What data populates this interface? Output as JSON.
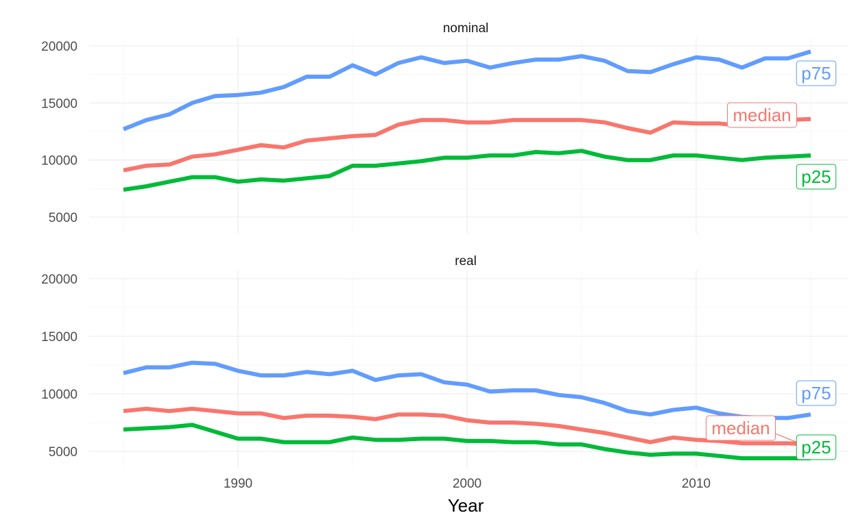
{
  "chart_data": {
    "type": "line",
    "xlabel": "Year",
    "ylabel": "",
    "xlim": [
      1985,
      2015
    ],
    "ylim": [
      3800,
      20500
    ],
    "x_ticks": [
      1990,
      2000,
      2010
    ],
    "x_tick_labels": [
      "1990",
      "2000",
      "2010"
    ],
    "y_ticks": [
      5000,
      10000,
      15000,
      20000
    ],
    "y_tick_labels": [
      "5000",
      "10000",
      "15000",
      "20000"
    ],
    "grid": true,
    "legend": "none",
    "colors": {
      "p75": "#619cff",
      "median": "#f8766d",
      "p25": "#00ba38"
    },
    "x": [
      1985,
      1986,
      1987,
      1988,
      1989,
      1990,
      1991,
      1992,
      1993,
      1994,
      1995,
      1996,
      1997,
      1998,
      1999,
      2000,
      2001,
      2002,
      2003,
      2004,
      2005,
      2006,
      2007,
      2008,
      2009,
      2010,
      2011,
      2012,
      2013,
      2014,
      2015
    ],
    "facets": [
      {
        "title": "nominal",
        "series": [
          {
            "name": "p75",
            "values": [
              12700,
              13500,
              14000,
              15000,
              15600,
              15700,
              15900,
              16400,
              17300,
              17300,
              18300,
              17500,
              18500,
              19000,
              18500,
              18700,
              18100,
              18500,
              18800,
              18800,
              19100,
              18700,
              17800,
              17700,
              18400,
              19000,
              18800,
              18100,
              18900,
              18900,
              19500
            ]
          },
          {
            "name": "median",
            "values": [
              9100,
              9500,
              9600,
              10300,
              10500,
              10900,
              11300,
              11100,
              11700,
              11900,
              12100,
              12200,
              13100,
              13500,
              13500,
              13300,
              13300,
              13500,
              13500,
              13500,
              13500,
              13300,
              12800,
              12400,
              13300,
              13200,
              13200,
              13000,
              13300,
              13500,
              13600
            ]
          },
          {
            "name": "p25",
            "values": [
              7400,
              7700,
              8100,
              8500,
              8500,
              8100,
              8300,
              8200,
              8400,
              8600,
              9500,
              9500,
              9700,
              9900,
              10200,
              10200,
              10400,
              10400,
              10700,
              10600,
              10800,
              10300,
              10000,
              10000,
              10400,
              10400,
              10200,
              10000,
              10200,
              10300,
              10400
            ]
          }
        ],
        "labels": [
          {
            "series": "p75",
            "text": "p75"
          },
          {
            "series": "median",
            "text": "median"
          },
          {
            "series": "p25",
            "text": "p25"
          }
        ]
      },
      {
        "title": "real",
        "series": [
          {
            "name": "p75",
            "values": [
              11800,
              12300,
              12300,
              12700,
              12600,
              12000,
              11600,
              11600,
              11900,
              11700,
              12000,
              11200,
              11600,
              11700,
              11000,
              10800,
              10200,
              10300,
              10300,
              9900,
              9700,
              9200,
              8500,
              8200,
              8600,
              8800,
              8300,
              8000,
              7900,
              7900,
              8200
            ]
          },
          {
            "name": "median",
            "values": [
              8500,
              8700,
              8500,
              8700,
              8500,
              8300,
              8300,
              7900,
              8100,
              8100,
              8000,
              7800,
              8200,
              8200,
              8100,
              7700,
              7500,
              7500,
              7400,
              7200,
              6900,
              6600,
              6200,
              5800,
              6200,
              6000,
              5900,
              5700,
              5700,
              5700,
              5600
            ]
          },
          {
            "name": "p25",
            "values": [
              6900,
              7000,
              7100,
              7300,
              6700,
              6100,
              6100,
              5800,
              5800,
              5800,
              6200,
              6000,
              6000,
              6100,
              6100,
              5900,
              5900,
              5800,
              5800,
              5600,
              5600,
              5200,
              4900,
              4700,
              4800,
              4800,
              4600,
              4400,
              4400,
              4400,
              4400
            ]
          }
        ],
        "labels": [
          {
            "series": "p75",
            "text": "p75"
          },
          {
            "series": "median",
            "text": "median"
          },
          {
            "series": "p25",
            "text": "p25"
          }
        ]
      }
    ]
  }
}
